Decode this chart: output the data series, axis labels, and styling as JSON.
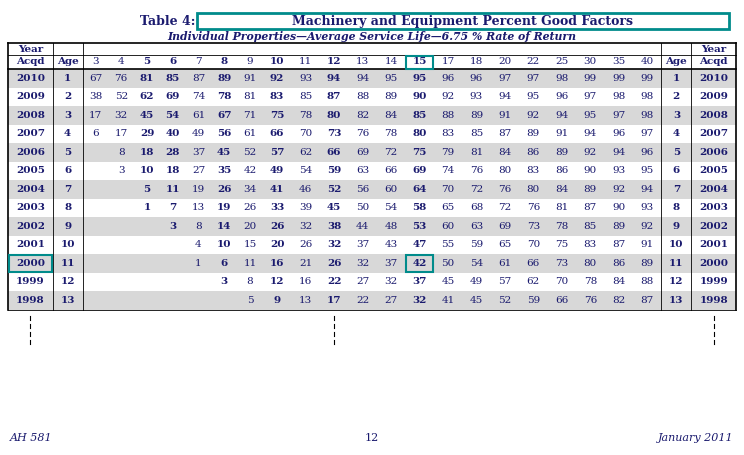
{
  "title_prefix": "Table 4:",
  "title_main": "Machinery and Equipment Percent Good Factors",
  "subtitle": "Individual Properties—Average Service Life—6.75 % Rate of Return",
  "footer_left": "AH 581",
  "footer_center": "12",
  "footer_right": "January 2011",
  "col_headers_row2": [
    "Acqd",
    "Age",
    "3",
    "4",
    "5",
    "6",
    "7",
    "8",
    "9",
    "10",
    "11",
    "12",
    "13",
    "14",
    "15",
    "17",
    "18",
    "20",
    "22",
    "25",
    "30",
    "35",
    "40",
    "Age",
    "Acqd"
  ],
  "rows": [
    [
      "2010",
      "1",
      "67",
      "76",
      "81",
      "85",
      "87",
      "89",
      "91",
      "92",
      "93",
      "94",
      "94",
      "95",
      "95",
      "96",
      "96",
      "97",
      "97",
      "98",
      "99",
      "99",
      "99",
      "1",
      "2010"
    ],
    [
      "2009",
      "2",
      "38",
      "52",
      "62",
      "69",
      "74",
      "78",
      "81",
      "83",
      "85",
      "87",
      "88",
      "89",
      "90",
      "92",
      "93",
      "94",
      "95",
      "96",
      "97",
      "98",
      "98",
      "2",
      "2009"
    ],
    [
      "2008",
      "3",
      "17",
      "32",
      "45",
      "54",
      "61",
      "67",
      "71",
      "75",
      "78",
      "80",
      "82",
      "84",
      "85",
      "88",
      "89",
      "91",
      "92",
      "94",
      "95",
      "97",
      "98",
      "3",
      "2008"
    ],
    [
      "2007",
      "4",
      "6",
      "17",
      "29",
      "40",
      "49",
      "56",
      "61",
      "66",
      "70",
      "73",
      "76",
      "78",
      "80",
      "83",
      "85",
      "87",
      "89",
      "91",
      "94",
      "96",
      "97",
      "4",
      "2007"
    ],
    [
      "2006",
      "5",
      "",
      "8",
      "18",
      "28",
      "37",
      "45",
      "52",
      "57",
      "62",
      "66",
      "69",
      "72",
      "75",
      "79",
      "81",
      "84",
      "86",
      "89",
      "92",
      "94",
      "96",
      "5",
      "2006"
    ],
    [
      "2005",
      "6",
      "",
      "3",
      "10",
      "18",
      "27",
      "35",
      "42",
      "49",
      "54",
      "59",
      "63",
      "66",
      "69",
      "74",
      "76",
      "80",
      "83",
      "86",
      "90",
      "93",
      "95",
      "6",
      "2005"
    ],
    [
      "2004",
      "7",
      "",
      "",
      "5",
      "11",
      "19",
      "26",
      "34",
      "41",
      "46",
      "52",
      "56",
      "60",
      "64",
      "70",
      "72",
      "76",
      "80",
      "84",
      "89",
      "92",
      "94",
      "7",
      "2004"
    ],
    [
      "2003",
      "8",
      "",
      "",
      "1",
      "7",
      "13",
      "19",
      "26",
      "33",
      "39",
      "45",
      "50",
      "54",
      "58",
      "65",
      "68",
      "72",
      "76",
      "81",
      "87",
      "90",
      "93",
      "8",
      "2003"
    ],
    [
      "2002",
      "9",
      "",
      "",
      "",
      "3",
      "8",
      "14",
      "20",
      "26",
      "32",
      "38",
      "44",
      "48",
      "53",
      "60",
      "63",
      "69",
      "73",
      "78",
      "85",
      "89",
      "92",
      "9",
      "2002"
    ],
    [
      "2001",
      "10",
      "",
      "",
      "",
      "",
      "4",
      "10",
      "15",
      "20",
      "26",
      "32",
      "37",
      "43",
      "47",
      "55",
      "59",
      "65",
      "70",
      "75",
      "83",
      "87",
      "91",
      "10",
      "2001"
    ],
    [
      "2000",
      "11",
      "",
      "",
      "",
      "",
      "1",
      "6",
      "11",
      "16",
      "21",
      "26",
      "32",
      "37",
      "42",
      "50",
      "54",
      "61",
      "66",
      "73",
      "80",
      "86",
      "89",
      "11",
      "2000"
    ],
    [
      "1999",
      "12",
      "",
      "",
      "",
      "",
      "",
      "3",
      "8",
      "12",
      "16",
      "22",
      "27",
      "32",
      "37",
      "45",
      "49",
      "57",
      "62",
      "70",
      "78",
      "84",
      "88",
      "12",
      "1999"
    ],
    [
      "1998",
      "13",
      "",
      "",
      "",
      "",
      "",
      "",
      "5",
      "9",
      "13",
      "17",
      "22",
      "27",
      "32",
      "41",
      "45",
      "52",
      "59",
      "66",
      "76",
      "82",
      "87",
      "13",
      "1998"
    ]
  ],
  "data_bold_cols": [
    0,
    1,
    4,
    5,
    7,
    9,
    11,
    14,
    23,
    24
  ],
  "highlight_cell_row": 10,
  "highlight_cell_col": 14,
  "highlight_acqd_row": 10,
  "shaded_rows": [
    0,
    2,
    4,
    6,
    8,
    10,
    12
  ],
  "shaded_color": "#d8d8d8",
  "box_color": "#008B8B",
  "bg_color": "#ffffff",
  "text_color": "#1a1a6e",
  "title_color": "#1a1a6e"
}
